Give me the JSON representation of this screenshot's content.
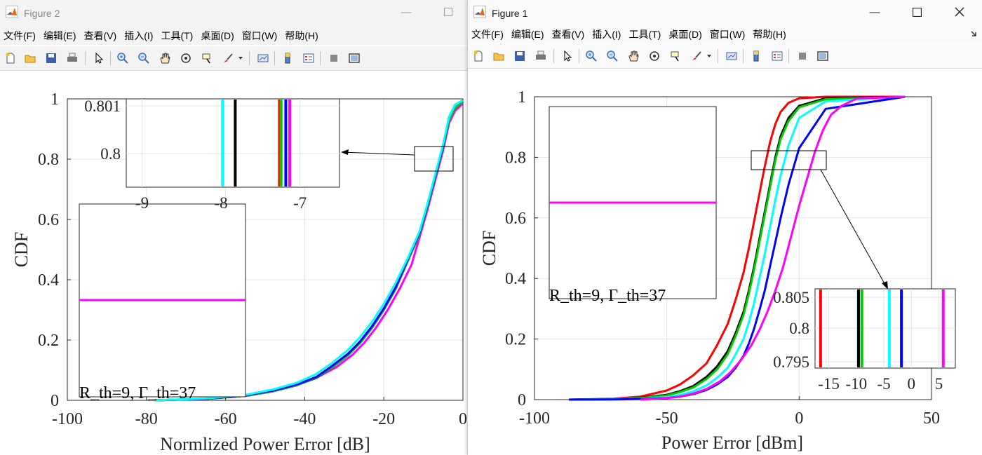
{
  "figure2": {
    "title": "Figure 2",
    "menu": [
      "文件(F)",
      "编辑(E)",
      "查看(V)",
      "插入(I)",
      "工具(T)",
      "桌面(D)",
      "窗口(W)",
      "帮助(H)"
    ],
    "chart_data": {
      "type": "line",
      "xlabel": "Normlized Power Error [dB]",
      "ylabel": "CDF",
      "xlim": [
        -100,
        0
      ],
      "ylim": [
        0,
        1
      ],
      "xticks": [
        "-100",
        "-80",
        "-60",
        "-40",
        "-20",
        "0"
      ],
      "yticks": [
        "0",
        "0.2",
        "0.4",
        "0.6",
        "0.8",
        "1"
      ],
      "grid": true,
      "series": [
        {
          "color": "#ff00ff",
          "x": [
            -78,
            -65,
            -55,
            -48,
            -42,
            -37,
            -32,
            -28,
            -25,
            -22,
            -19,
            -16,
            -13,
            -11,
            -9,
            -7,
            -5,
            -3.5,
            -2,
            0
          ],
          "y": [
            0,
            0.005,
            0.015,
            0.03,
            0.05,
            0.075,
            0.11,
            0.15,
            0.19,
            0.24,
            0.3,
            0.37,
            0.45,
            0.54,
            0.63,
            0.73,
            0.83,
            0.92,
            0.96,
            0.985
          ]
        },
        {
          "color": "#000000",
          "x": [
            -78,
            -65,
            -55,
            -48,
            -42,
            -37,
            -33,
            -29,
            -26,
            -23,
            -20,
            -17,
            -14,
            -11,
            -9,
            -7,
            -5,
            -3.5,
            -2,
            0
          ],
          "y": [
            0,
            0.005,
            0.015,
            0.03,
            0.05,
            0.075,
            0.11,
            0.15,
            0.19,
            0.24,
            0.3,
            0.37,
            0.46,
            0.55,
            0.64,
            0.74,
            0.84,
            0.93,
            0.97,
            0.99
          ]
        },
        {
          "color": "#00cc00",
          "x": [
            -78,
            -65,
            -55,
            -48,
            -42,
            -37,
            -33,
            -29,
            -26,
            -23,
            -20,
            -17,
            -14,
            -11,
            -9,
            -7,
            -5,
            -3.5,
            -2,
            0
          ],
          "y": [
            0,
            0.005,
            0.015,
            0.03,
            0.05,
            0.076,
            0.11,
            0.15,
            0.19,
            0.24,
            0.3,
            0.37,
            0.46,
            0.55,
            0.64,
            0.74,
            0.84,
            0.93,
            0.97,
            0.99
          ]
        },
        {
          "color": "#0000ff",
          "x": [
            -78,
            -65,
            -55,
            -48,
            -42,
            -37,
            -33,
            -29,
            -26,
            -23,
            -20,
            -17,
            -14,
            -11,
            -9,
            -7,
            -5,
            -3.5,
            -2,
            0
          ],
          "y": [
            0,
            0.005,
            0.016,
            0.032,
            0.052,
            0.078,
            0.115,
            0.155,
            0.195,
            0.245,
            0.305,
            0.375,
            0.465,
            0.555,
            0.645,
            0.745,
            0.845,
            0.94,
            0.98,
            0.995
          ]
        },
        {
          "color": "#00ffff",
          "x": [
            -78,
            -65,
            -55,
            -48,
            -42,
            -37,
            -33,
            -29,
            -26,
            -23,
            -20,
            -17,
            -14,
            -11,
            -9,
            -7,
            -5,
            -3.5,
            -2,
            0
          ],
          "y": [
            0,
            0.006,
            0.018,
            0.036,
            0.058,
            0.088,
            0.125,
            0.168,
            0.21,
            0.26,
            0.32,
            0.39,
            0.47,
            0.56,
            0.65,
            0.75,
            0.85,
            0.94,
            0.98,
            0.995
          ]
        }
      ],
      "inset_legend": {
        "text": "R_th=9, Γ_th=37",
        "line_color": "#ff00ff",
        "line_y": 0.335
      },
      "zoom_inset": {
        "xlim": [
          -9.2,
          -6.5
        ],
        "xticks": [
          "-9",
          "-8",
          "-7"
        ],
        "yticks": [
          "0.801",
          "0.8"
        ],
        "lines": [
          {
            "color": "#00ffff",
            "x": -7.98
          },
          {
            "color": "#000000",
            "x": -7.82
          },
          {
            "color": "#ff0000",
            "x": -7.26
          },
          {
            "color": "#00cc00",
            "x": -7.24
          },
          {
            "color": "#0000ff",
            "x": -7.18
          },
          {
            "color": "#ff00ff",
            "x": -7.13
          }
        ]
      }
    }
  },
  "figure1": {
    "title": "Figure 1",
    "menu": [
      "文件(F)",
      "编辑(E)",
      "查看(V)",
      "插入(I)",
      "工具(T)",
      "桌面(D)",
      "窗口(W)",
      "帮助(H)"
    ],
    "chart_data": {
      "type": "line",
      "xlabel": "Power Error [dBm]",
      "ylabel": "CDF",
      "xlim": [
        -100,
        50
      ],
      "ylim": [
        0,
        1
      ],
      "xticks": [
        "-100",
        "-50",
        "0",
        "50"
      ],
      "yticks": [
        "0",
        "0.2",
        "0.4",
        "0.6",
        "0.8",
        "1"
      ],
      "grid": true,
      "series": [
        {
          "color": "#ff0000",
          "x": [
            -87,
            -70,
            -60,
            -50,
            -45,
            -40,
            -35,
            -31,
            -27,
            -24,
            -21,
            -19,
            -17,
            -15,
            -13,
            -11,
            -9,
            -7,
            -4,
            0,
            10,
            40
          ],
          "y": [
            0,
            0.003,
            0.01,
            0.03,
            0.05,
            0.08,
            0.12,
            0.18,
            0.25,
            0.33,
            0.42,
            0.5,
            0.59,
            0.68,
            0.77,
            0.85,
            0.91,
            0.95,
            0.98,
            0.995,
            1,
            1
          ]
        },
        {
          "color": "#000000",
          "x": [
            -87,
            -70,
            -60,
            -50,
            -45,
            -40,
            -35,
            -31,
            -27,
            -24,
            -21,
            -19,
            -17,
            -15,
            -13,
            -11,
            -9,
            -7,
            -4,
            0,
            10,
            40
          ],
          "y": [
            0,
            0.002,
            0.006,
            0.016,
            0.028,
            0.045,
            0.075,
            0.11,
            0.16,
            0.22,
            0.29,
            0.36,
            0.44,
            0.53,
            0.62,
            0.71,
            0.8,
            0.87,
            0.93,
            0.97,
            0.995,
            1
          ]
        },
        {
          "color": "#00cc00",
          "x": [
            -87,
            -70,
            -60,
            -50,
            -45,
            -40,
            -35,
            -31,
            -27,
            -24,
            -21,
            -19,
            -17,
            -15,
            -13,
            -11,
            -9,
            -7,
            -4,
            0,
            10,
            40
          ],
          "y": [
            0,
            0.002,
            0.005,
            0.014,
            0.025,
            0.04,
            0.068,
            0.1,
            0.15,
            0.21,
            0.28,
            0.35,
            0.43,
            0.52,
            0.61,
            0.7,
            0.79,
            0.86,
            0.92,
            0.965,
            0.992,
            1
          ]
        },
        {
          "color": "#00ffff",
          "x": [
            -87,
            -70,
            -60,
            -50,
            -45,
            -40,
            -35,
            -31,
            -27,
            -24,
            -21,
            -19,
            -17,
            -15,
            -13,
            -11,
            -9,
            -7,
            -4,
            0,
            10,
            40
          ],
          "y": [
            0,
            0.001,
            0.003,
            0.008,
            0.015,
            0.027,
            0.047,
            0.072,
            0.105,
            0.15,
            0.2,
            0.255,
            0.32,
            0.4,
            0.48,
            0.57,
            0.66,
            0.74,
            0.84,
            0.93,
            0.985,
            1
          ]
        },
        {
          "color": "#0000ff",
          "x": [
            -87,
            -70,
            -60,
            -50,
            -45,
            -40,
            -35,
            -31,
            -27,
            -24,
            -21,
            -19,
            -17,
            -15,
            -13,
            -11,
            -9,
            -7,
            -4,
            0,
            10,
            40
          ],
          "y": [
            0,
            0.0005,
            0.002,
            0.005,
            0.01,
            0.018,
            0.032,
            0.05,
            0.075,
            0.105,
            0.145,
            0.185,
            0.235,
            0.295,
            0.36,
            0.44,
            0.52,
            0.6,
            0.71,
            0.83,
            0.96,
            1
          ]
        },
        {
          "color": "#ff00ff",
          "x": [
            -60,
            -50,
            -45,
            -40,
            -35,
            -30,
            -26,
            -22,
            -18,
            -15,
            -12,
            -9,
            -6,
            -3,
            0,
            3,
            6,
            9,
            12,
            16,
            22,
            40
          ],
          "y": [
            0,
            0.005,
            0.01,
            0.02,
            0.035,
            0.06,
            0.09,
            0.13,
            0.18,
            0.23,
            0.29,
            0.36,
            0.44,
            0.54,
            0.64,
            0.73,
            0.82,
            0.89,
            0.94,
            0.97,
            0.995,
            1
          ]
        }
      ],
      "inset_legend": {
        "text": "R_th=9, Γ_th=37",
        "line_color": "#ff00ff",
        "line_y": 0.65
      },
      "zoom_inset": {
        "xlim": [
          -17.5,
          8
        ],
        "xticks": [
          "-15",
          "-10",
          "-5",
          "0",
          "5"
        ],
        "yticks": [
          "0.805",
          "0.8",
          "0.795"
        ],
        "lines": [
          {
            "color": "#ff0000",
            "x": -16.5
          },
          {
            "color": "#000000",
            "x": -9.6
          },
          {
            "color": "#00cc00",
            "x": -9.0
          },
          {
            "color": "#00ffff",
            "x": -4.0
          },
          {
            "color": "#0000ff",
            "x": -1.8
          },
          {
            "color": "#ff00ff",
            "x": 5.8
          }
        ]
      }
    }
  }
}
